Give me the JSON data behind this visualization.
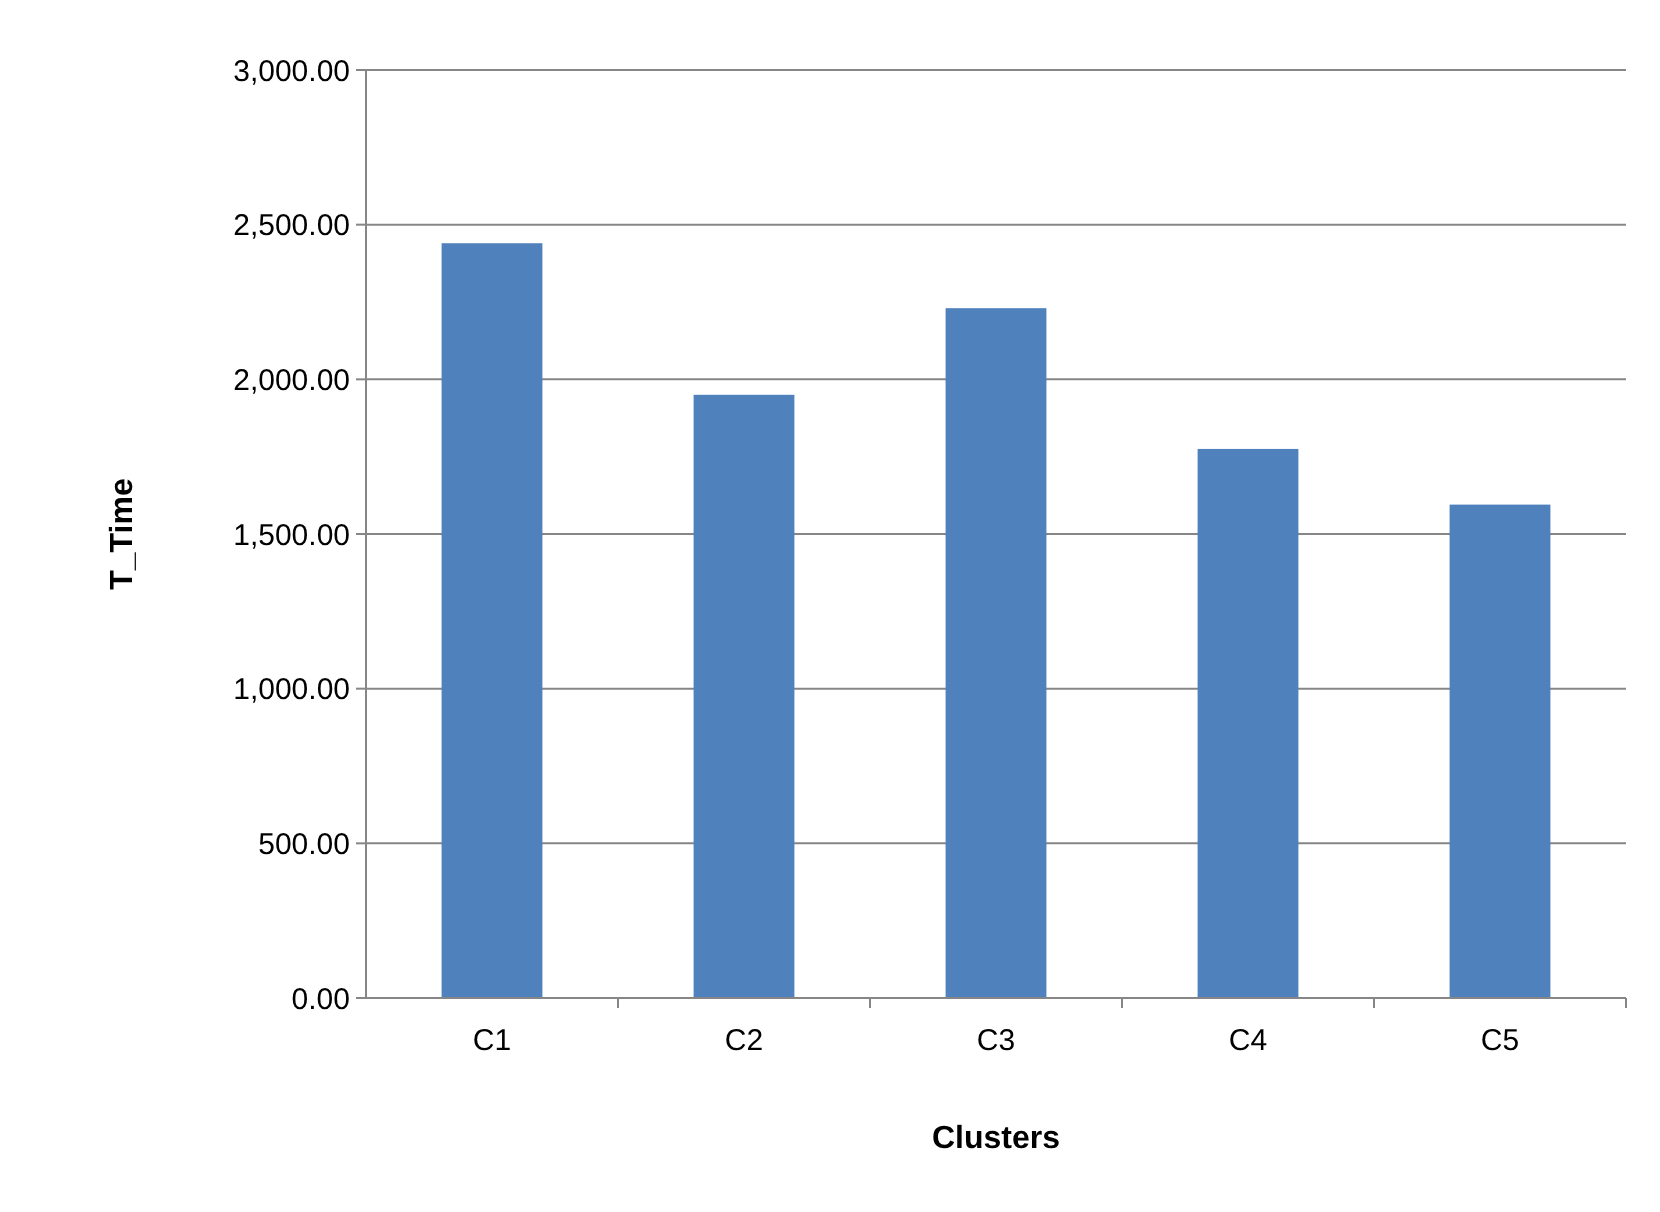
{
  "chart_data": {
    "type": "bar",
    "xlabel": "Clusters",
    "ylabel": "T_Time",
    "categories": [
      "C1",
      "C2",
      "C3",
      "C4",
      "C5"
    ],
    "values": [
      2440,
      1950,
      2230,
      1775,
      1595
    ],
    "color": "#4f81bd",
    "ylim": [
      0,
      3000
    ],
    "yticks": [
      {
        "value": 0,
        "label": "0.00"
      },
      {
        "value": 500,
        "label": "500.00"
      },
      {
        "value": 1000,
        "label": "1,000.00"
      },
      {
        "value": 1500,
        "label": "1,500.00"
      },
      {
        "value": 2000,
        "label": "2,000.00"
      },
      {
        "value": 2500,
        "label": "2,500.00"
      },
      {
        "value": 3000,
        "label": "3,000.00"
      }
    ],
    "grid": "y"
  }
}
